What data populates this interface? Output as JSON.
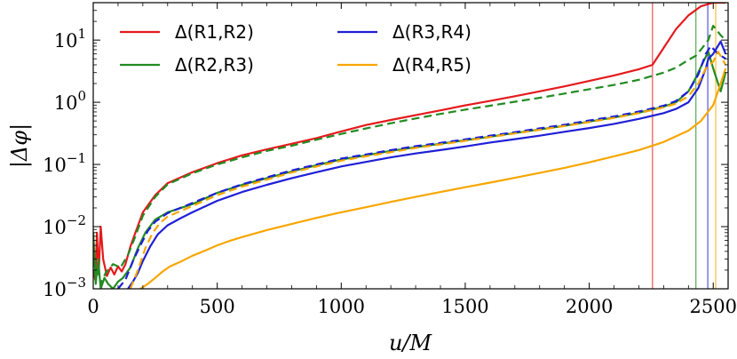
{
  "chart_data": {
    "type": "line",
    "xlabel": "u/M",
    "ylabel": "|Δφ|",
    "xlim": [
      0,
      2560
    ],
    "ylim": [
      0.001,
      40
    ],
    "yscale": "log",
    "grid": false,
    "legend_position": "top-left",
    "x_ticks": [
      {
        "value": 0,
        "label": "0"
      },
      {
        "value": 500,
        "label": "500"
      },
      {
        "value": 1000,
        "label": "1000"
      },
      {
        "value": 1500,
        "label": "1500"
      },
      {
        "value": 2000,
        "label": "2000"
      },
      {
        "value": 2500,
        "label": "2500"
      }
    ],
    "y_ticks": [
      {
        "value": 0.001,
        "base": "10",
        "exp": "−3"
      },
      {
        "value": 0.01,
        "base": "10",
        "exp": "−2"
      },
      {
        "value": 0.1,
        "base": "10",
        "exp": "−1"
      },
      {
        "value": 1,
        "base": "10",
        "exp": "0"
      },
      {
        "value": 10,
        "base": "10",
        "exp": "1"
      }
    ],
    "legend_entries": [
      {
        "label": "Δ(R1,R2)",
        "color": "#e41a1c"
      },
      {
        "label": "Δ(R2,R3)",
        "color": "#228b22"
      },
      {
        "label": "Δ(R3,R4)",
        "color": "#1f1fd6"
      },
      {
        "label": "Δ(R4,R5)",
        "color": "#f7a600"
      }
    ],
    "vertical_lines": [
      {
        "x": 2255,
        "color": "#e41a1c"
      },
      {
        "x": 2430,
        "color": "#228b22"
      },
      {
        "x": 2478,
        "color": "#1f1fd6"
      },
      {
        "x": 2510,
        "color": "#f7a600"
      }
    ],
    "series": [
      {
        "color": "#e41a1c",
        "style": "solid",
        "x": [
          0,
          8,
          15,
          22,
          30,
          40,
          55,
          70,
          85,
          100,
          115,
          130,
          150,
          170,
          200,
          250,
          300,
          400,
          500,
          600,
          700,
          800,
          900,
          1000,
          1100,
          1200,
          1300,
          1400,
          1500,
          1600,
          1700,
          1800,
          1900,
          2000,
          2100,
          2200,
          2255,
          2300,
          2350,
          2400,
          2450,
          2500,
          2550
        ],
        "y": [
          0.002,
          0.0014,
          0.008,
          0.0017,
          0.01,
          0.003,
          0.0016,
          0.0022,
          0.0017,
          0.0023,
          0.0019,
          0.0025,
          0.0048,
          0.008,
          0.017,
          0.032,
          0.05,
          0.075,
          0.105,
          0.14,
          0.175,
          0.215,
          0.265,
          0.34,
          0.43,
          0.52,
          0.62,
          0.74,
          0.89,
          1.05,
          1.25,
          1.5,
          1.8,
          2.2,
          2.7,
          3.4,
          4.0,
          7.5,
          15,
          25,
          35,
          40,
          40
        ]
      },
      {
        "color": "#228b22",
        "style": "dashed",
        "x": [
          0,
          10,
          20,
          30,
          50,
          80,
          110,
          140,
          170,
          200,
          250,
          300,
          400,
          500,
          600,
          700,
          800,
          900,
          1000,
          1100,
          1200,
          1300,
          1400,
          1500,
          1600,
          1700,
          1800,
          1900,
          2000,
          2100,
          2200,
          2300,
          2350,
          2400,
          2430,
          2450,
          2480,
          2500,
          2530,
          2550
        ],
        "y": [
          0.003,
          0.0015,
          0.002,
          0.0012,
          0.0018,
          0.0025,
          0.0022,
          0.0035,
          0.007,
          0.015,
          0.03,
          0.048,
          0.072,
          0.1,
          0.13,
          0.165,
          0.2,
          0.25,
          0.31,
          0.38,
          0.46,
          0.55,
          0.65,
          0.76,
          0.88,
          1.02,
          1.18,
          1.38,
          1.62,
          1.9,
          2.3,
          3.0,
          3.6,
          4.8,
          5.6,
          7.0,
          10,
          17,
          12,
          10
        ]
      },
      {
        "color": "#228b22",
        "style": "solid",
        "x": [
          0,
          10,
          20,
          30,
          45,
          60,
          80,
          100,
          120,
          150,
          180,
          210,
          250,
          300,
          400,
          500,
          600,
          700,
          800,
          900,
          1000,
          1100,
          1200,
          1300,
          1400,
          1500,
          1600,
          1700,
          1800,
          1900,
          2000,
          2100,
          2200,
          2300,
          2350,
          2400,
          2430,
          2460,
          2480,
          2500,
          2530,
          2550
        ],
        "y": [
          0.008,
          0.0012,
          0.003,
          0.001,
          0.0015,
          0.0012,
          0.001,
          0.0013,
          0.0015,
          0.0022,
          0.0045,
          0.008,
          0.013,
          0.017,
          0.023,
          0.035,
          0.047,
          0.06,
          0.077,
          0.097,
          0.12,
          0.14,
          0.165,
          0.19,
          0.215,
          0.245,
          0.28,
          0.32,
          0.365,
          0.42,
          0.49,
          0.57,
          0.68,
          0.85,
          1.0,
          1.5,
          2.5,
          4.5,
          6.5,
          3.5,
          1.5,
          3.0
        ]
      },
      {
        "color": "#1f1fd6",
        "style": "dashed",
        "x": [
          100,
          130,
          160,
          190,
          220,
          250,
          300,
          400,
          500,
          600,
          700,
          800,
          900,
          1000,
          1100,
          1200,
          1300,
          1400,
          1500,
          1600,
          1700,
          1800,
          1900,
          2000,
          2100,
          2200,
          2300,
          2350,
          2400,
          2440,
          2470,
          2490,
          2520,
          2550
        ],
        "y": [
          0.001,
          0.0014,
          0.0028,
          0.005,
          0.0085,
          0.012,
          0.0165,
          0.024,
          0.035,
          0.048,
          0.062,
          0.08,
          0.1,
          0.124,
          0.145,
          0.17,
          0.197,
          0.222,
          0.253,
          0.29,
          0.33,
          0.38,
          0.435,
          0.51,
          0.59,
          0.71,
          0.88,
          1.05,
          1.5,
          2.8,
          6,
          8,
          6,
          5
        ]
      },
      {
        "color": "#1f1fd6",
        "style": "solid",
        "x": [
          140,
          160,
          180,
          200,
          230,
          260,
          300,
          350,
          400,
          500,
          600,
          700,
          800,
          900,
          1000,
          1100,
          1200,
          1300,
          1400,
          1500,
          1600,
          1700,
          1800,
          1900,
          2000,
          2100,
          2200,
          2300,
          2350,
          2400,
          2440,
          2470,
          2480,
          2500,
          2530,
          2550
        ],
        "y": [
          0.001,
          0.0013,
          0.0018,
          0.0028,
          0.0048,
          0.0075,
          0.0105,
          0.0135,
          0.017,
          0.026,
          0.036,
          0.047,
          0.06,
          0.075,
          0.093,
          0.11,
          0.13,
          0.15,
          0.17,
          0.195,
          0.225,
          0.255,
          0.29,
          0.335,
          0.385,
          0.45,
          0.54,
          0.67,
          0.78,
          1.0,
          1.7,
          3.5,
          5.0,
          6.0,
          9.5,
          6.0
        ]
      },
      {
        "color": "#f7a600",
        "style": "dashed",
        "x": [
          150,
          180,
          210,
          240,
          270,
          300,
          400,
          500,
          600,
          700,
          800,
          900,
          1000,
          1100,
          1200,
          1300,
          1400,
          1500,
          1600,
          1700,
          1800,
          1900,
          2000,
          2100,
          2200,
          2300,
          2350,
          2400,
          2440,
          2470,
          2500,
          2520,
          2550
        ],
        "y": [
          0.001,
          0.002,
          0.0045,
          0.008,
          0.0115,
          0.0145,
          0.0215,
          0.032,
          0.044,
          0.057,
          0.074,
          0.093,
          0.115,
          0.135,
          0.158,
          0.184,
          0.21,
          0.24,
          0.275,
          0.315,
          0.36,
          0.415,
          0.48,
          0.56,
          0.67,
          0.83,
          0.95,
          1.25,
          2.0,
          3.5,
          4.5,
          6.5,
          4.0
        ]
      },
      {
        "color": "#f7a600",
        "style": "solid",
        "x": [
          190,
          220,
          250,
          280,
          310,
          350,
          400,
          450,
          500,
          550,
          600,
          700,
          800,
          900,
          1000,
          1100,
          1200,
          1300,
          1400,
          1500,
          1600,
          1700,
          1800,
          1900,
          2000,
          2100,
          2200,
          2300,
          2400,
          2450,
          2500,
          2530,
          2550
        ],
        "y": [
          0.001,
          0.0012,
          0.0015,
          0.0019,
          0.0023,
          0.0027,
          0.0034,
          0.0041,
          0.005,
          0.0059,
          0.0068,
          0.0088,
          0.011,
          0.0138,
          0.017,
          0.0205,
          0.025,
          0.03,
          0.036,
          0.043,
          0.051,
          0.061,
          0.073,
          0.088,
          0.108,
          0.135,
          0.17,
          0.23,
          0.35,
          0.5,
          0.9,
          2.0,
          3.5
        ]
      }
    ]
  }
}
